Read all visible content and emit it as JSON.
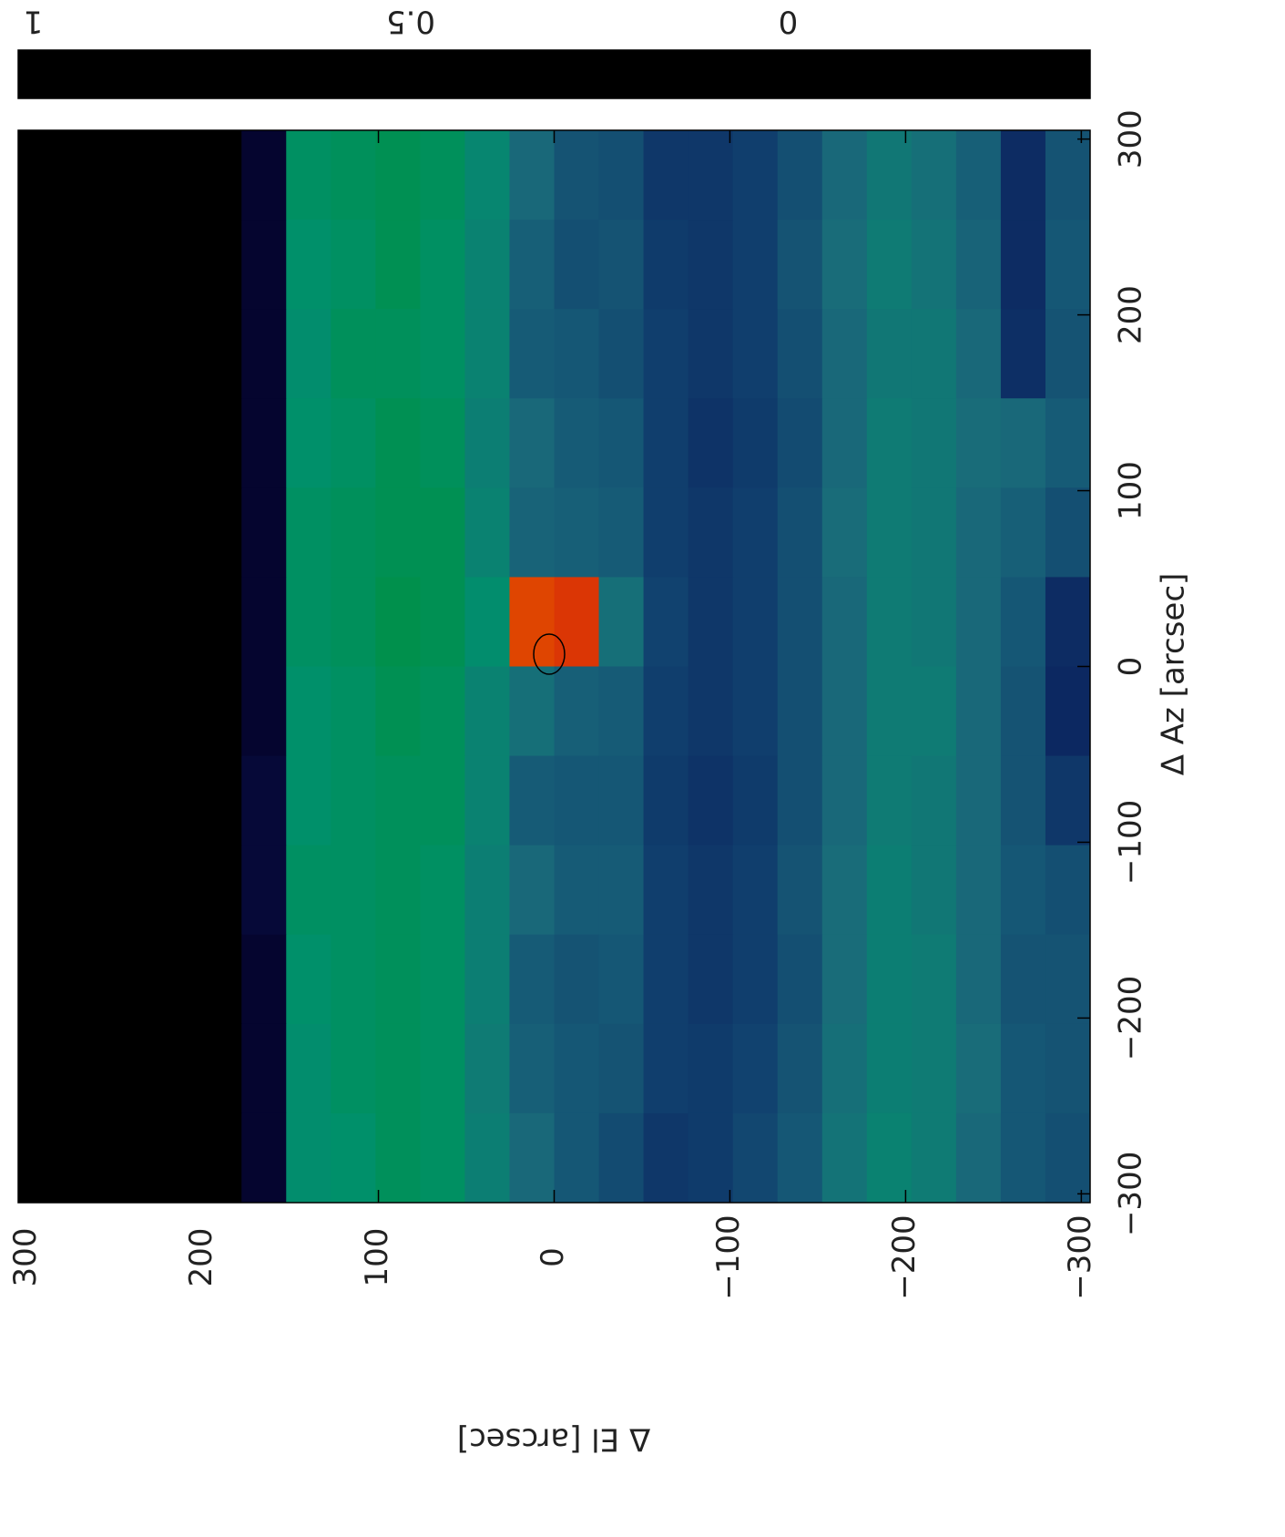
{
  "chart_data": {
    "type": "heatmap",
    "xlabel": "Δ El [arcsec]",
    "ylabel": "Δ Az [arcsec]",
    "xlim": [
      305,
      -305
    ],
    "xticks": [
      {
        "value": -300,
        "label": "−300"
      },
      {
        "value": -200,
        "label": "−200"
      },
      {
        "value": -100,
        "label": "−100"
      },
      0,
      100,
      200,
      300
    ],
    "ylim": [
      -305,
      305
    ],
    "yticks": [
      {
        "value": -300,
        "label": "−300"
      },
      {
        "value": -200,
        "label": "−200"
      },
      {
        "value": -100,
        "label": "−100"
      },
      0,
      100,
      200,
      300
    ],
    "zlim": [
      -0.4,
      1.02
    ],
    "zticks": [
      0,
      0.5,
      1
    ],
    "colormap": [
      "#000000",
      "#050530",
      "#0a1a5a",
      "#10406e",
      "#1a6a7a",
      "#00906c",
      "#009020",
      "#508a08",
      "#c01818",
      "#d82a08",
      "#e04a00",
      "#e57a00",
      "#eca000",
      "#f4cc00",
      "#ffff20"
    ],
    "z": [
      [
        -0.4,
        -0.4,
        -0.4,
        -0.4,
        -0.4,
        -0.3,
        0.12,
        0.13,
        0.14,
        0.13,
        0.08,
        0.0,
        -0.05,
        -0.06,
        -0.12,
        -0.12,
        -0.1,
        -0.06,
        0.0,
        0.04,
        0.02,
        -0.02,
        -0.15,
        -0.05
      ],
      [
        -0.4,
        -0.4,
        -0.4,
        -0.4,
        -0.4,
        -0.3,
        0.11,
        0.12,
        0.14,
        0.12,
        0.07,
        -0.02,
        -0.06,
        -0.05,
        -0.11,
        -0.12,
        -0.1,
        -0.05,
        0.01,
        0.05,
        0.03,
        -0.01,
        -0.15,
        -0.04
      ],
      [
        -0.4,
        -0.4,
        -0.4,
        -0.4,
        -0.4,
        -0.3,
        0.1,
        0.13,
        0.13,
        0.12,
        0.07,
        -0.03,
        -0.04,
        -0.06,
        -0.1,
        -0.12,
        -0.1,
        -0.06,
        0.0,
        0.04,
        0.04,
        0.0,
        -0.14,
        -0.05
      ],
      [
        -0.4,
        -0.4,
        -0.4,
        -0.4,
        -0.4,
        -0.3,
        0.11,
        0.12,
        0.14,
        0.13,
        0.06,
        0.0,
        -0.03,
        -0.04,
        -0.1,
        -0.13,
        -0.11,
        -0.07,
        0.0,
        0.05,
        0.04,
        0.01,
        0.0,
        -0.03
      ],
      [
        -0.4,
        -0.4,
        -0.4,
        -0.4,
        -0.4,
        -0.3,
        0.12,
        0.13,
        0.14,
        0.14,
        0.07,
        -0.01,
        -0.02,
        -0.03,
        -0.1,
        -0.12,
        -0.1,
        -0.06,
        0.01,
        0.05,
        0.04,
        0.0,
        -0.02,
        -0.06
      ],
      [
        -0.4,
        -0.4,
        -0.4,
        -0.4,
        -0.4,
        -0.3,
        0.12,
        0.13,
        0.15,
        0.14,
        0.1,
        0.6,
        0.55,
        0.02,
        -0.09,
        -0.12,
        -0.1,
        -0.06,
        0.0,
        0.05,
        0.04,
        0.0,
        -0.04,
        -0.15
      ],
      [
        -0.4,
        -0.4,
        -0.4,
        -0.4,
        -0.4,
        -0.3,
        0.11,
        0.12,
        0.14,
        0.13,
        0.07,
        0.02,
        -0.02,
        -0.03,
        -0.1,
        -0.12,
        -0.1,
        -0.06,
        0.0,
        0.05,
        0.05,
        0.0,
        -0.05,
        -0.16
      ],
      [
        -0.4,
        -0.4,
        -0.4,
        -0.4,
        -0.4,
        -0.28,
        0.11,
        0.12,
        0.13,
        0.13,
        0.07,
        -0.03,
        -0.04,
        -0.04,
        -0.11,
        -0.13,
        -0.11,
        -0.06,
        0.0,
        0.05,
        0.04,
        0.0,
        -0.05,
        -0.12
      ],
      [
        -0.4,
        -0.4,
        -0.4,
        -0.4,
        -0.4,
        -0.28,
        0.12,
        0.12,
        0.13,
        0.12,
        0.06,
        0.0,
        -0.03,
        -0.03,
        -0.1,
        -0.12,
        -0.1,
        -0.05,
        0.01,
        0.06,
        0.04,
        0.0,
        -0.04,
        -0.06
      ],
      [
        -0.4,
        -0.4,
        -0.4,
        -0.4,
        -0.4,
        -0.3,
        0.11,
        0.12,
        0.13,
        0.12,
        0.06,
        -0.03,
        -0.05,
        -0.04,
        -0.1,
        -0.12,
        -0.1,
        -0.06,
        0.01,
        0.06,
        0.05,
        0.0,
        -0.05,
        -0.05
      ],
      [
        -0.4,
        -0.4,
        -0.4,
        -0.4,
        -0.4,
        -0.3,
        0.1,
        0.12,
        0.13,
        0.12,
        0.05,
        -0.02,
        -0.04,
        -0.05,
        -0.1,
        -0.11,
        -0.09,
        -0.05,
        0.02,
        0.06,
        0.05,
        0.01,
        -0.04,
        -0.05
      ],
      [
        -0.4,
        -0.4,
        -0.4,
        -0.4,
        -0.4,
        -0.3,
        0.1,
        0.11,
        0.13,
        0.12,
        0.06,
        0.0,
        -0.04,
        -0.07,
        -0.12,
        -0.11,
        -0.08,
        -0.04,
        0.03,
        0.07,
        0.05,
        0.0,
        -0.04,
        -0.06
      ]
    ]
  }
}
